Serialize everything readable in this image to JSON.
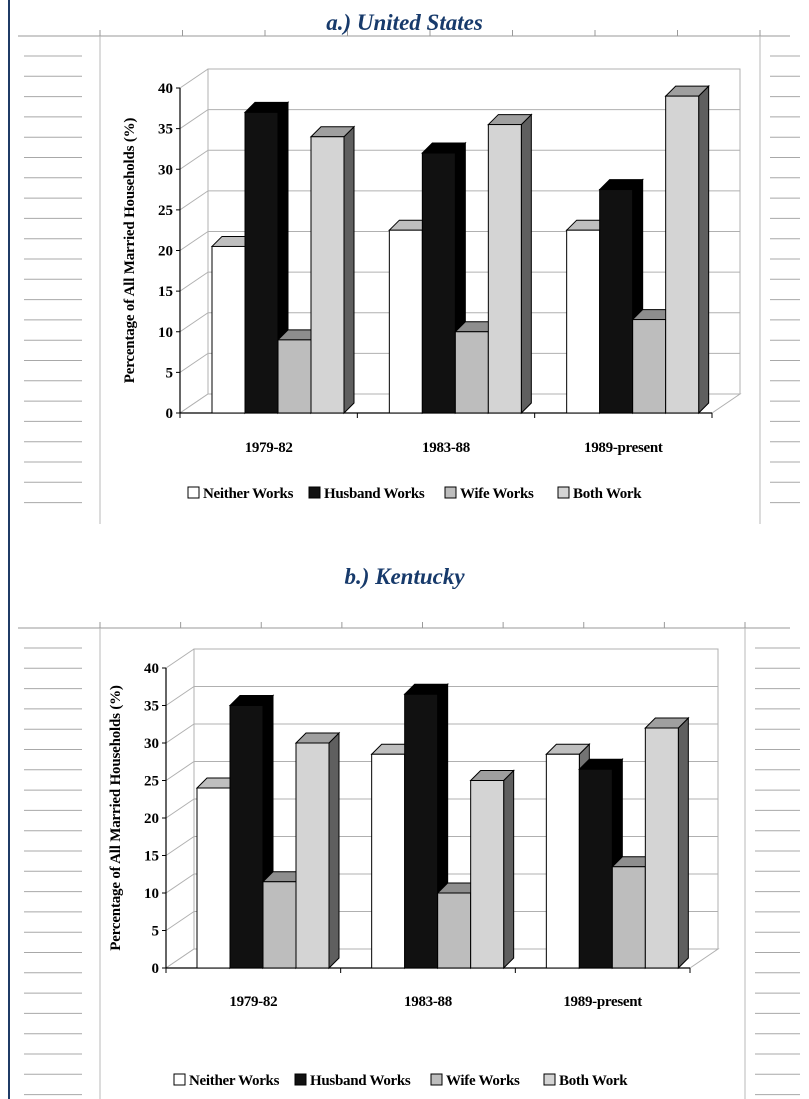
{
  "chart_data": [
    {
      "type": "bar",
      "title": "a.) United States",
      "ylabel": "Percentage of All Married Households (%)",
      "ylim": [
        0,
        40
      ],
      "yticks": [
        "0",
        "5",
        "10",
        "15",
        "20",
        "25",
        "30",
        "35",
        "40"
      ],
      "categories": [
        "1979-82",
        "1983-88",
        "1989-present"
      ],
      "series": [
        {
          "name": "Neither Works",
          "color": "#ffffff",
          "values": [
            20.5,
            22.5,
            22.5
          ]
        },
        {
          "name": "Husband Works",
          "color": "#111111",
          "values": [
            37,
            32,
            27.5
          ]
        },
        {
          "name": "Wife Works",
          "color": "#bdbdbd",
          "values": [
            9,
            10,
            11.5
          ]
        },
        {
          "name": "Both Work",
          "color": "#d4d4d4",
          "values": [
            34,
            35.5,
            39
          ]
        }
      ],
      "legend_position": "bottom",
      "grid": true
    },
    {
      "type": "bar",
      "title": "b.) Kentucky",
      "ylabel": "Percentage of All Married Households (%)",
      "ylim": [
        0,
        40
      ],
      "yticks": [
        "0",
        "5",
        "10",
        "15",
        "20",
        "25",
        "30",
        "35",
        "40"
      ],
      "categories": [
        "1979-82",
        "1983-88",
        "1989-present"
      ],
      "series": [
        {
          "name": "Neither Works",
          "color": "#ffffff",
          "values": [
            24,
            28.5,
            28.5
          ]
        },
        {
          "name": "Husband Works",
          "color": "#111111",
          "values": [
            35,
            36.5,
            26.5
          ]
        },
        {
          "name": "Wife Works",
          "color": "#bdbdbd",
          "values": [
            11.5,
            10,
            13.5
          ]
        },
        {
          "name": "Both Work",
          "color": "#d4d4d4",
          "values": [
            30,
            25,
            32
          ]
        }
      ],
      "legend_position": "bottom",
      "grid": true
    }
  ]
}
